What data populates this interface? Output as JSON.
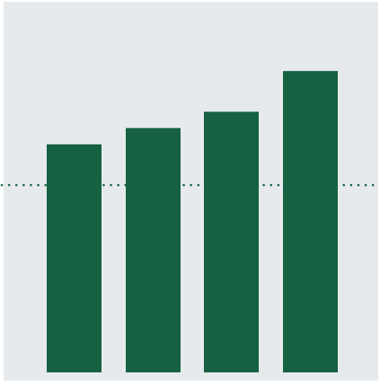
{
  "chart_data": {
    "type": "bar",
    "title": "",
    "xlabel": "",
    "ylabel": "",
    "categories": [
      "",
      "",
      "",
      ""
    ],
    "values": [
      56,
      60,
      64,
      74
    ],
    "reference_line": {
      "value": 46,
      "style": "dotted"
    },
    "ylim": [
      -2,
      91
    ],
    "grid": false,
    "legend": "none",
    "colors": {
      "bar": "#156142",
      "plot_background": "#e6eaed",
      "reference_line": "#156142",
      "page_background": "#ffffff"
    }
  }
}
